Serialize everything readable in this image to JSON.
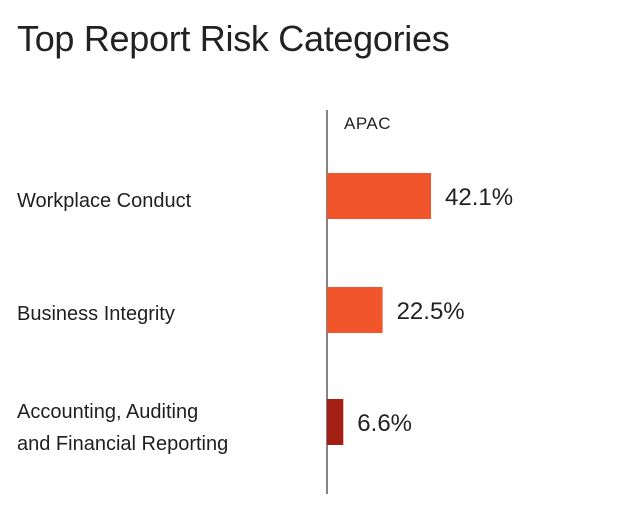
{
  "title": "Top Report Risk Categories",
  "chart_data": {
    "type": "bar",
    "orientation": "horizontal",
    "title": "Top Report Risk Categories",
    "series_label": "APAC",
    "categories": [
      [
        "Workplace Conduct"
      ],
      [
        "Business Integrity"
      ],
      [
        "Accounting, Auditing",
        "and Financial Reporting"
      ]
    ],
    "values": [
      42.1,
      22.5,
      6.6
    ],
    "value_labels": [
      "42.1%",
      "22.5%",
      "6.6%"
    ],
    "colors": [
      "#f0552b",
      "#f0552b",
      "#a31f14"
    ],
    "xlim": [
      0,
      100
    ]
  }
}
